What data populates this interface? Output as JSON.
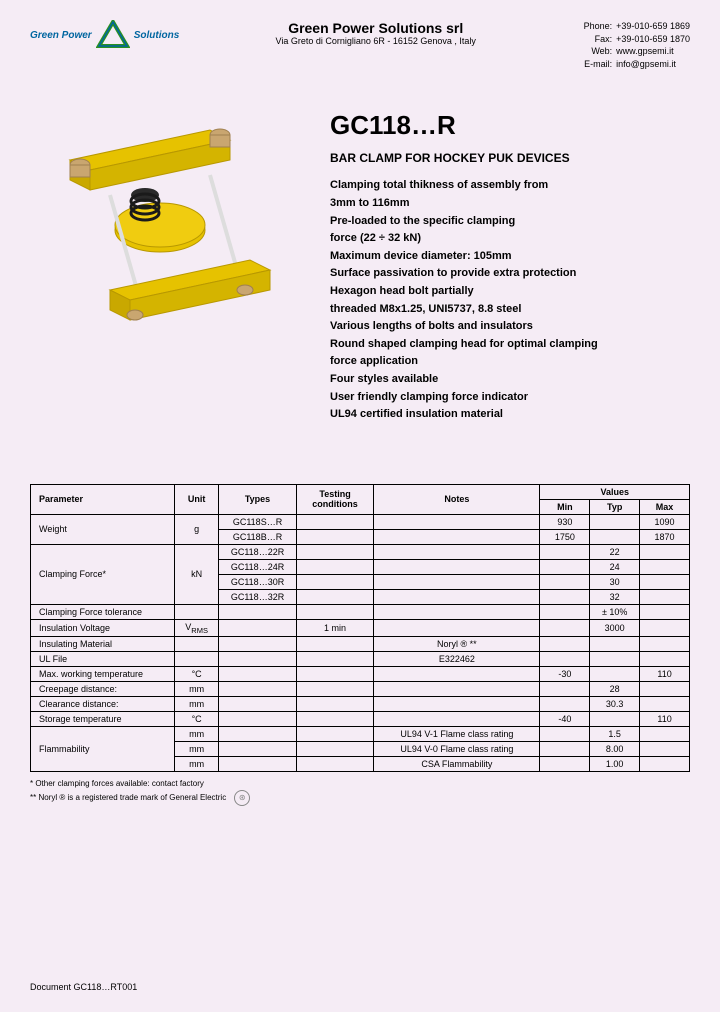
{
  "header": {
    "company_name": "Green Power",
    "company_name2": "Solutions",
    "company_title": "Green Power Solutions srl",
    "company_address": "Via Greto di Cornigliano 6R - 16152 Genova , Italy",
    "contact": {
      "phone_label": "Phone:",
      "phone": "+39-010-659 1869",
      "fax_label": "Fax:",
      "fax": "+39-010-659 1870",
      "web_label": "Web:",
      "web": "www.gpsemi.it",
      "email_label": "E-mail:",
      "email": "info@gpsemi.it"
    }
  },
  "product": {
    "code": "GC118…R",
    "subtitle": "BAR CLAMP FOR HOCKEY PUK DEVICES",
    "features": [
      "Clamping total thikness of assembly from",
      "3mm to 116mm",
      "Pre-loaded to the specific clamping",
      "force (22 ÷ 32 kN)",
      "Maximum device diameter: 105mm",
      "Surface passivation to provide extra protection",
      "Hexagon head bolt partially",
      "threaded M8x1.25, UNI5737, 8.8 steel",
      "Various lengths of bolts and insulators",
      "Round shaped clamping head for optimal clamping",
      "force application",
      "Four styles available",
      "User friendly clamping force indicator",
      "UL94 certified insulation material"
    ]
  },
  "table": {
    "headers": {
      "parameter": "Parameter",
      "unit": "Unit",
      "types": "Types",
      "testing": "Testing conditions",
      "notes": "Notes",
      "values": "Values",
      "min": "Min",
      "typ": "Typ",
      "max": "Max"
    },
    "rows": {
      "weight": {
        "param": "Weight",
        "unit": "g",
        "type1": "GC118S…R",
        "min1": "930",
        "max1": "1090",
        "type2": "GC118B…R",
        "min2": "1750",
        "max2": "1870"
      },
      "clamping": {
        "param": "Clamping Force*",
        "unit": "kN",
        "t1": "GC118…22R",
        "v1": "22",
        "t2": "GC118…24R",
        "v2": "24",
        "t3": "GC118…30R",
        "v3": "30",
        "t4": "GC118…32R",
        "v4": "32"
      },
      "tolerance": {
        "param": "Clamping Force tolerance",
        "typ": "± 10%"
      },
      "insulation_v": {
        "param": "Insulation Voltage",
        "unit": "VRMS",
        "test": "1 min",
        "typ": "3000"
      },
      "material": {
        "param": "Insulating  Material",
        "notes": "Noryl ® **"
      },
      "ulfile": {
        "param": "UL File",
        "notes": "E322462"
      },
      "maxtemp": {
        "param": "Max. working temperature",
        "unit": "°C",
        "min": "-30",
        "max": "110"
      },
      "creepage": {
        "param": "Creepage distance:",
        "unit": "mm",
        "typ": "28"
      },
      "clearance": {
        "param": "Clearance distance:",
        "unit": "mm",
        "typ": "30.3"
      },
      "storage": {
        "param": "Storage temperature",
        "unit": "°C",
        "min": "-40",
        "max": "110"
      },
      "flam": {
        "param": "Flammability",
        "unit": "mm",
        "n1": "UL94 V-1 Flame class rating",
        "v1": "1.5",
        "n2": "UL94 V-0 Flame class rating",
        "v2": "8.00",
        "n3": "CSA Flammability",
        "v3": "1.00"
      }
    }
  },
  "footnotes": {
    "f1": "*    Other clamping forces available: contact factory",
    "f2": "**   Noryl ® is a registered trade mark of General Electric"
  },
  "doc_id": "Document GC118…RT001",
  "colors": {
    "clamp_yellow": "#e6c200",
    "clamp_bronze": "#c9a670",
    "clamp_dark": "#3a3a3a"
  }
}
